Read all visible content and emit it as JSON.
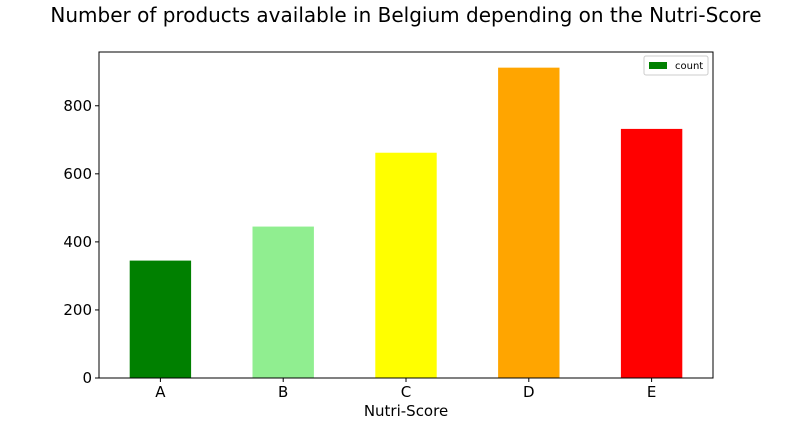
{
  "chart_data": {
    "type": "bar",
    "title": "Number of products available in Belgium depending on the Nutri-Score",
    "xlabel": "Nutri-Score",
    "ylabel": "",
    "categories": [
      "A",
      "B",
      "C",
      "D",
      "E"
    ],
    "series": [
      {
        "name": "count",
        "values": [
          345,
          445,
          662,
          912,
          732
        ],
        "colors": [
          "#008000",
          "#90ee90",
          "#ffff00",
          "#ffa500",
          "#ff0000"
        ],
        "legend_color": "#008000"
      }
    ],
    "ylim": [
      0,
      958
    ],
    "yticks": [
      0,
      200,
      400,
      600,
      800
    ],
    "grid": false,
    "legend_position": "top-right"
  }
}
